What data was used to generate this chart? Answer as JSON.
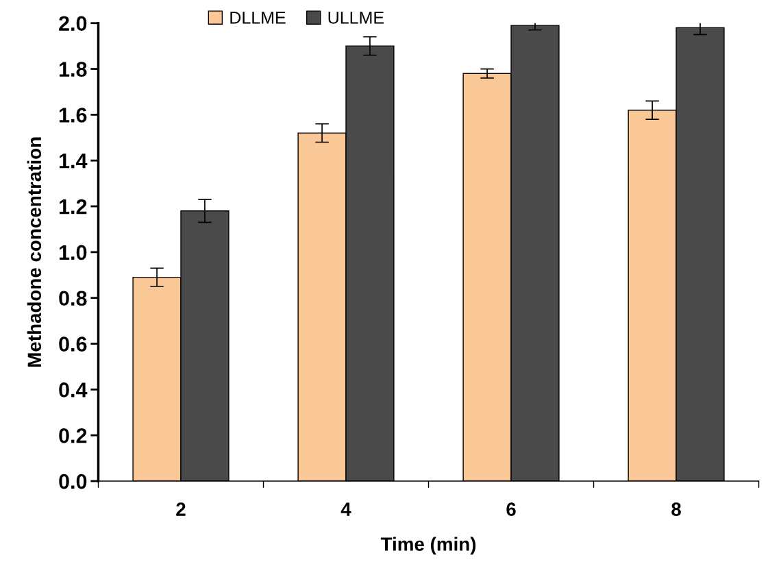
{
  "chart_data": {
    "type": "bar",
    "xlabel": "Time (min)",
    "ylabel": "Methadone concentration",
    "categories": [
      "2",
      "4",
      "6",
      "8"
    ],
    "series": [
      {
        "name": "DLLME",
        "color": "#f9c896",
        "values": [
          0.89,
          1.52,
          1.78,
          1.62
        ],
        "errors": [
          0.04,
          0.04,
          0.02,
          0.04
        ]
      },
      {
        "name": "ULLME",
        "color": "#4a4a4a",
        "values": [
          1.18,
          1.9,
          1.99,
          1.98
        ],
        "errors": [
          0.05,
          0.04,
          0.02,
          0.03
        ]
      }
    ],
    "ylim": [
      0,
      2.0
    ],
    "yticks": [
      {
        "value": 0,
        "label": "0.0"
      },
      {
        "value": 0.2,
        "label": "0.2"
      },
      {
        "value": 0.4,
        "label": "0.4"
      },
      {
        "value": 0.6,
        "label": "0.6"
      },
      {
        "value": 0.8,
        "label": "0.8"
      },
      {
        "value": 1.0,
        "label": "1.0"
      },
      {
        "value": 1.2,
        "label": "1.2"
      },
      {
        "value": 1.4,
        "label": "1.4"
      },
      {
        "value": 1.6,
        "label": "1.6"
      },
      {
        "value": 1.8,
        "label": "1.8"
      },
      {
        "value": 2.0,
        "label": "2.0"
      }
    ],
    "grid": false,
    "legend": "top"
  }
}
